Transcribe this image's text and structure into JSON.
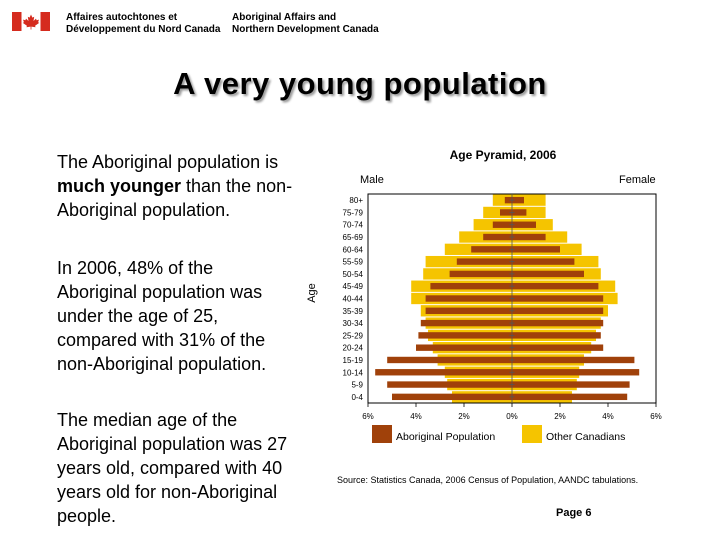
{
  "header": {
    "org_fr_line1": "Affaires autochtones et",
    "org_fr_line2": "Développement du Nord Canada",
    "org_en_line1": "Aboriginal Affairs and",
    "org_en_line2": "Northern Development Canada",
    "flag_color": "#d52b1e"
  },
  "slide": {
    "title": "A very young population",
    "para1_part1": "The Aboriginal population is ",
    "para1_bold": "much younger",
    "para1_part2": " than the non-Aboriginal population.",
    "para2": "In 2006, 48% of the Aboriginal population was under the age of 25, compared with 31% of the non-Aboriginal population.",
    "para3": "The median age of the Aboriginal population was 27 years old, compared with 40 years old for non-Aboriginal people.",
    "source": "Source: Statistics Canada, 2006 Census of Population, AANDC tabulations.",
    "page": "Page 6"
  },
  "chart_data": {
    "type": "bar",
    "orientation": "horizontal-pyramid",
    "title": "Age Pyramid, 2006",
    "left_label": "Male",
    "right_label": "Female",
    "ylabel": "Age",
    "categories": [
      "80+",
      "75-79",
      "70-74",
      "65-69",
      "60-64",
      "55-59",
      "50-54",
      "45-49",
      "40-44",
      "35-39",
      "30-34",
      "25-29",
      "20-24",
      "15-19",
      "10-14",
      "5-9",
      "0-4"
    ],
    "xlim": [
      -6,
      6
    ],
    "x_ticks": [
      -6,
      -4,
      -2,
      0,
      2,
      4,
      6
    ],
    "x_tick_labels": [
      "6%",
      "4%",
      "2%",
      "0%",
      "2%",
      "4%",
      "6%"
    ],
    "series": [
      {
        "name": "Other Canadians",
        "color": "#f5c400",
        "male": [
          0.8,
          1.2,
          1.6,
          2.2,
          2.8,
          3.6,
          3.7,
          4.2,
          4.2,
          3.8,
          3.6,
          3.5,
          3.3,
          3.1,
          2.8,
          2.7,
          2.5
        ],
        "female": [
          1.4,
          1.4,
          1.7,
          2.3,
          2.9,
          3.6,
          3.7,
          4.3,
          4.4,
          4.0,
          3.7,
          3.5,
          3.3,
          3.0,
          2.8,
          2.7,
          2.5
        ]
      },
      {
        "name": "Aboriginal Population",
        "color": "#a0410a",
        "male": [
          0.3,
          0.5,
          0.8,
          1.2,
          1.7,
          2.3,
          2.6,
          3.4,
          3.6,
          3.6,
          3.8,
          3.9,
          4.0,
          5.2,
          5.7,
          5.2,
          5.0
        ],
        "female": [
          0.5,
          0.6,
          1.0,
          1.4,
          2.0,
          2.6,
          3.0,
          3.6,
          3.8,
          3.8,
          3.8,
          3.7,
          3.8,
          5.1,
          5.3,
          4.9,
          4.8
        ]
      }
    ],
    "legend_position": "bottom"
  }
}
